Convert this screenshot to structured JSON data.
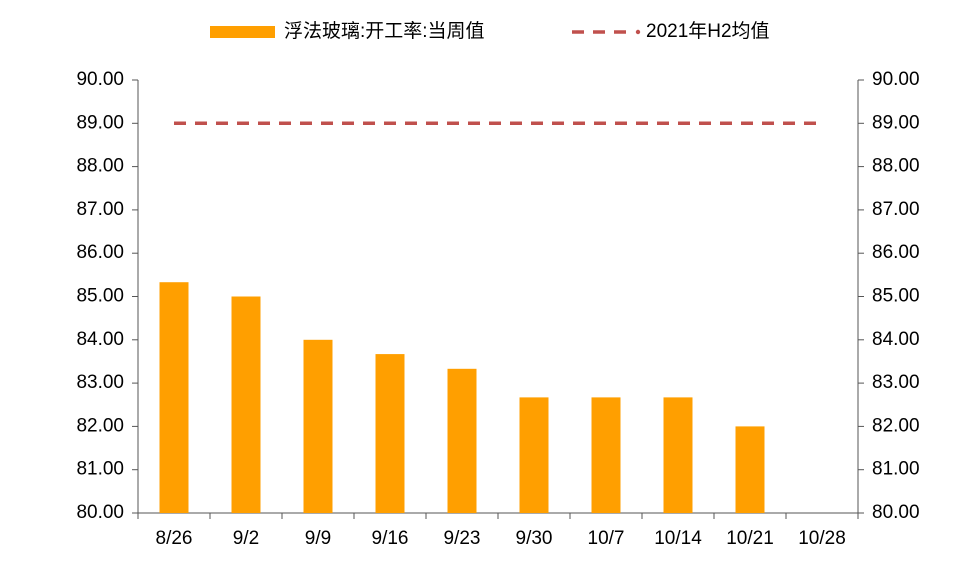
{
  "chart_data": {
    "type": "bar",
    "categories": [
      "8/26",
      "9/2",
      "9/9",
      "9/16",
      "9/23",
      "9/30",
      "10/7",
      "10/14",
      "10/21",
      "10/28"
    ],
    "series": [
      {
        "name": "浮法玻璃:开工率:当周值",
        "type": "bar",
        "color": "#FF9F00",
        "values": [
          85.33,
          85.0,
          84.0,
          83.67,
          83.33,
          82.67,
          82.67,
          82.67,
          82.0,
          null
        ]
      },
      {
        "name": "2021年H2均值",
        "type": "line",
        "color": "#C0504D",
        "dashed": true,
        "values": [
          89,
          89,
          89,
          89,
          89,
          89,
          89,
          89,
          89,
          89
        ]
      }
    ],
    "ylim": [
      80,
      90
    ],
    "yticks": [
      {
        "value": 80,
        "label": "80.00"
      },
      {
        "value": 81,
        "label": "81.00"
      },
      {
        "value": 82,
        "label": "82.00"
      },
      {
        "value": 83,
        "label": "83.00"
      },
      {
        "value": 84,
        "label": "84.00"
      },
      {
        "value": 85,
        "label": "85.00"
      },
      {
        "value": 86,
        "label": "86.00"
      },
      {
        "value": 87,
        "label": "87.00"
      },
      {
        "value": 88,
        "label": "88.00"
      },
      {
        "value": 89,
        "label": "89.00"
      },
      {
        "value": 90,
        "label": "90.00"
      }
    ],
    "y2lim": [
      80,
      90
    ],
    "y2ticks": [
      {
        "value": 80,
        "label": "80.00"
      },
      {
        "value": 81,
        "label": "81.00"
      },
      {
        "value": 82,
        "label": "82.00"
      },
      {
        "value": 83,
        "label": "83.00"
      },
      {
        "value": 84,
        "label": "84.00"
      },
      {
        "value": 85,
        "label": "85.00"
      },
      {
        "value": 86,
        "label": "86.00"
      },
      {
        "value": 87,
        "label": "87.00"
      },
      {
        "value": 88,
        "label": "88.00"
      },
      {
        "value": 89,
        "label": "89.00"
      },
      {
        "value": 90,
        "label": "90.00"
      }
    ],
    "grid": false,
    "legend": "top"
  }
}
